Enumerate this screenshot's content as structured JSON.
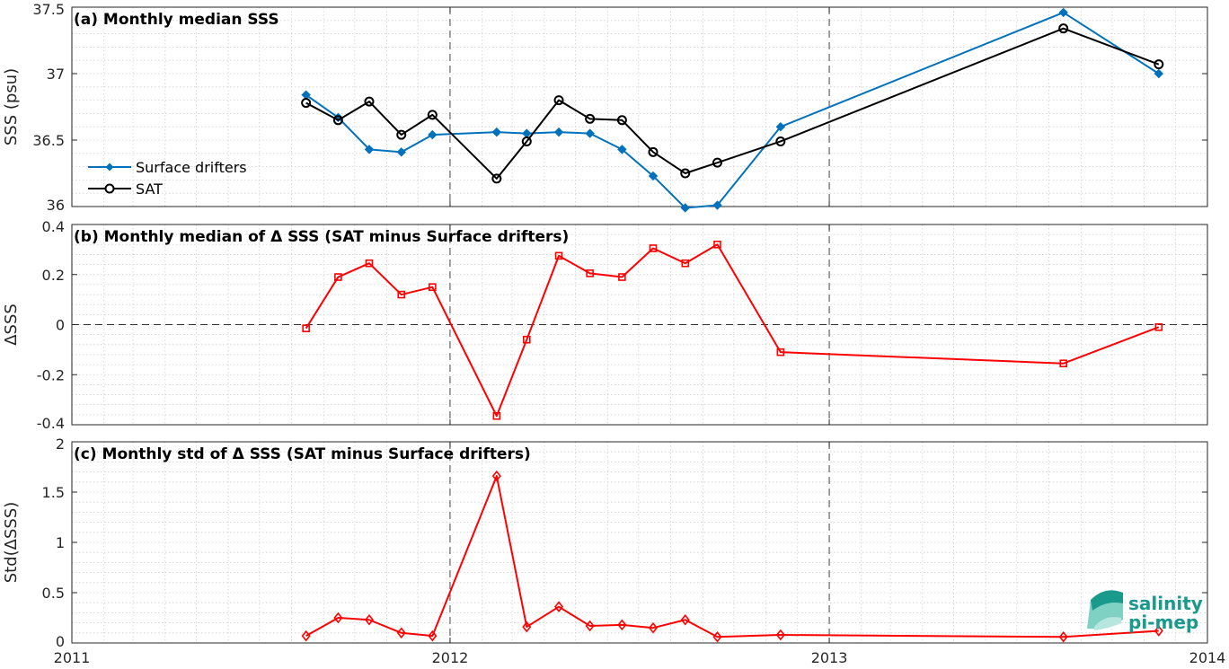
{
  "chart_data": [
    {
      "type": "line",
      "title": "(a) Monthly median SSS",
      "ylabel": "SSS (psu)",
      "ylim": [
        36.0,
        37.5
      ],
      "yticks": [
        "36",
        "36.5",
        "37",
        "37.5"
      ],
      "xlim": [
        "2011-01-01",
        "2014-01-01"
      ],
      "xticks": [
        "2011",
        "2012",
        "2013",
        "2014"
      ],
      "grid": true,
      "legend_position": "center-left",
      "series": [
        {
          "name": "Surface drifters",
          "color": "#0072BD",
          "marker": "diamond-filled",
          "x": [
            "2011-08-15",
            "2011-09-15",
            "2011-10-15",
            "2011-11-15",
            "2011-12-15",
            "2012-02-15",
            "2012-03-15",
            "2012-04-15",
            "2012-05-15",
            "2012-06-15",
            "2012-07-15",
            "2012-08-15",
            "2012-09-15",
            "2012-11-15",
            "2013-08-15",
            "2013-11-15"
          ],
          "values": [
            36.84,
            36.67,
            36.43,
            36.41,
            36.54,
            36.56,
            36.55,
            36.56,
            36.55,
            36.43,
            36.23,
            35.99,
            36.01,
            36.6,
            37.46,
            37.0
          ]
        },
        {
          "name": "SAT",
          "color": "#000000",
          "marker": "circle-open",
          "x": [
            "2011-08-15",
            "2011-09-15",
            "2011-10-15",
            "2011-11-15",
            "2011-12-15",
            "2012-02-15",
            "2012-03-15",
            "2012-04-15",
            "2012-05-15",
            "2012-06-15",
            "2012-07-15",
            "2012-08-15",
            "2012-09-15",
            "2012-11-15",
            "2013-08-15",
            "2013-11-15"
          ],
          "values": [
            36.78,
            36.65,
            36.79,
            36.54,
            36.69,
            36.21,
            36.49,
            36.8,
            36.66,
            36.65,
            36.41,
            36.25,
            36.33,
            36.49,
            37.34,
            37.07
          ]
        }
      ]
    },
    {
      "type": "line",
      "title": "(b) Monthly median of Δ SSS (SAT minus Surface drifters)",
      "ylabel": "ΔSSS",
      "ylim": [
        -0.4,
        0.4
      ],
      "yticks": [
        "-0.4",
        "-0.2",
        "0",
        "0.2",
        "0.4"
      ],
      "xlim": [
        "2011-01-01",
        "2014-01-01"
      ],
      "xticks": [
        "2011",
        "2012",
        "2013",
        "2014"
      ],
      "grid": true,
      "series": [
        {
          "color": "#FF0000",
          "marker": "square-open",
          "x": [
            "2011-08-15",
            "2011-09-15",
            "2011-10-15",
            "2011-11-15",
            "2011-12-15",
            "2012-02-15",
            "2012-03-15",
            "2012-04-15",
            "2012-05-15",
            "2012-06-15",
            "2012-07-15",
            "2012-08-15",
            "2012-09-15",
            "2012-11-15",
            "2013-08-15",
            "2013-11-15"
          ],
          "values": [
            -0.015,
            0.19,
            0.245,
            0.12,
            0.15,
            -0.365,
            -0.06,
            0.275,
            0.205,
            0.19,
            0.305,
            0.245,
            0.32,
            -0.11,
            -0.155,
            -0.01
          ]
        }
      ]
    },
    {
      "type": "line",
      "title": "(c) Monthly std of Δ SSS (SAT minus Surface drifters)",
      "ylabel": "Std(ΔSSS)",
      "ylim": [
        0,
        2
      ],
      "yticks": [
        "0",
        "0.5",
        "1",
        "1.5",
        "2"
      ],
      "xlim": [
        "2011-01-01",
        "2014-01-01"
      ],
      "xticks": [
        "2011",
        "2012",
        "2013",
        "2014"
      ],
      "grid": true,
      "series": [
        {
          "color": "#FF0000",
          "marker": "diamond-open",
          "x": [
            "2011-08-15",
            "2011-09-15",
            "2011-10-15",
            "2011-11-15",
            "2011-12-15",
            "2012-02-15",
            "2012-03-15",
            "2012-04-15",
            "2012-05-15",
            "2012-06-15",
            "2012-07-15",
            "2012-08-15",
            "2012-09-15",
            "2012-11-15",
            "2013-08-15",
            "2013-11-15"
          ],
          "values": [
            0.07,
            0.25,
            0.23,
            0.1,
            0.07,
            1.66,
            0.16,
            0.36,
            0.17,
            0.18,
            0.15,
            0.23,
            0.06,
            0.08,
            0.06,
            0.12
          ]
        }
      ]
    }
  ],
  "logo": {
    "line1": "salinity",
    "line2": "pi-mep"
  }
}
